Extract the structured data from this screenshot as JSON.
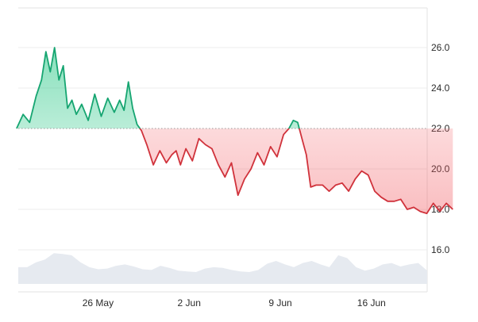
{
  "chart_data": {
    "type": "line",
    "title": "",
    "xlabel": "",
    "ylabel": "",
    "x_ticks": [
      "26 May",
      "2 Jun",
      "9 Jun",
      "16 Jun"
    ],
    "x_tick_dates": [
      "2025-05-26",
      "2025-06-02",
      "2025-06-09",
      "2025-06-16"
    ],
    "y_ticks": [
      16.0,
      18.0,
      20.0,
      22.0,
      24.0,
      26.0
    ],
    "y_tick_labels": [
      "16.0",
      "18.0",
      "20.0",
      "22.0",
      "24.0",
      "26.0"
    ],
    "ylim": [
      14.0,
      28.0
    ],
    "xlim": [
      "2025-05-20",
      "2025-06-23"
    ],
    "baseline": 22.0,
    "grid": true,
    "legend": "none",
    "colors": {
      "above": "#16a571",
      "below": "#d0323b",
      "above_fill": "#27c785",
      "below_fill": "#f2545b",
      "baseline": "#9a9a9a",
      "volume": "#e6eaf0"
    },
    "series": [
      {
        "x": [
          "2025-05-20",
          "2025-05-20",
          "2025-05-21",
          "2025-05-21",
          "2025-05-22",
          "2025-05-22",
          "2025-05-22",
          "2025-05-23",
          "2025-05-23",
          "2025-05-23",
          "2025-05-24",
          "2025-05-24",
          "2025-05-24",
          "2025-05-25",
          "2025-05-25",
          "2025-05-26",
          "2025-05-26",
          "2025-05-27",
          "2025-05-27",
          "2025-05-28",
          "2025-05-28",
          "2025-05-28",
          "2025-05-29",
          "2025-05-29",
          "2025-05-29",
          "2025-05-30",
          "2025-05-30",
          "2025-05-31",
          "2025-05-31",
          "2025-06-01",
          "2025-06-01",
          "2025-06-01",
          "2025-06-02",
          "2025-06-02",
          "2025-06-03",
          "2025-06-03",
          "2025-06-04",
          "2025-06-04",
          "2025-06-05",
          "2025-06-05",
          "2025-06-06",
          "2025-06-06",
          "2025-06-07",
          "2025-06-07",
          "2025-06-08",
          "2025-06-08",
          "2025-06-09",
          "2025-06-09",
          "2025-06-10",
          "2025-06-10",
          "2025-06-10",
          "2025-06-11",
          "2025-06-11",
          "2025-06-11",
          "2025-06-12",
          "2025-06-12",
          "2025-06-13",
          "2025-06-13",
          "2025-06-14",
          "2025-06-14",
          "2025-06-15",
          "2025-06-15",
          "2025-06-16",
          "2025-06-16",
          "2025-06-17",
          "2025-06-17",
          "2025-06-18",
          "2025-06-18",
          "2025-06-19",
          "2025-06-19",
          "2025-06-20",
          "2025-06-20",
          "2025-06-21",
          "2025-06-21",
          "2025-06-22",
          "2025-06-22"
        ],
        "y": [
          22.0,
          22.7,
          22.3,
          23.6,
          24.4,
          25.8,
          24.8,
          26.0,
          24.4,
          25.1,
          23.0,
          23.4,
          22.7,
          23.2,
          22.4,
          23.7,
          22.6,
          23.5,
          22.8,
          23.4,
          22.9,
          24.3,
          23.0,
          22.2,
          21.9,
          21.2,
          20.2,
          20.9,
          20.3,
          20.7,
          20.9,
          20.2,
          21.0,
          20.4,
          21.5,
          21.2,
          21.0,
          20.2,
          19.6,
          20.3,
          18.7,
          19.5,
          20.0,
          20.8,
          20.2,
          21.1,
          20.6,
          21.7,
          22.0,
          22.4,
          22.3,
          21.5,
          20.7,
          19.1,
          19.2,
          19.2,
          18.9,
          19.2,
          19.3,
          18.9,
          19.5,
          19.9,
          19.7,
          18.9,
          18.6,
          18.4,
          18.4,
          18.5,
          18.0,
          18.1,
          17.9,
          17.8,
          18.3,
          17.9,
          18.3,
          18.0
        ]
      }
    ],
    "volume": [
      0.48,
      0.48,
      0.62,
      0.7,
      0.88,
      0.86,
      0.82,
      0.62,
      0.48,
      0.42,
      0.44,
      0.52,
      0.56,
      0.5,
      0.42,
      0.4,
      0.52,
      0.46,
      0.38,
      0.36,
      0.34,
      0.44,
      0.48,
      0.46,
      0.4,
      0.36,
      0.34,
      0.4,
      0.58,
      0.66,
      0.56,
      0.48,
      0.6,
      0.66,
      0.56,
      0.48,
      0.82,
      0.74,
      0.48,
      0.38,
      0.44,
      0.56,
      0.6,
      0.5,
      0.56,
      0.6,
      0.38
    ]
  }
}
